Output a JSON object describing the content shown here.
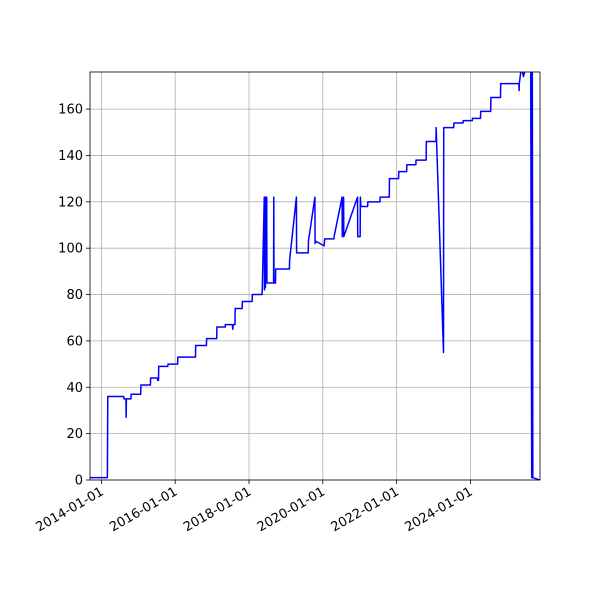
{
  "chart_data": {
    "type": "line",
    "x": [
      "2013-09-10",
      "2014-03-01",
      "2014-03-05",
      "2014-08-10",
      "2014-08-12",
      "2014-09-01",
      "2014-09-03",
      "2014-09-05",
      "2014-10-20",
      "2014-10-22",
      "2015-01-25",
      "2015-01-27",
      "2015-05-01",
      "2015-05-03",
      "2015-07-10",
      "2015-07-12",
      "2015-07-20",
      "2015-07-22",
      "2015-10-20",
      "2015-10-22",
      "2016-01-25",
      "2016-01-27",
      "2016-07-20",
      "2016-07-22",
      "2016-11-05",
      "2016-11-07",
      "2017-02-15",
      "2017-02-17",
      "2017-05-10",
      "2017-05-12",
      "2017-07-20",
      "2017-07-25",
      "2017-07-28",
      "2017-08-15",
      "2017-08-17",
      "2017-10-25",
      "2017-10-27",
      "2018-02-01",
      "2018-02-03",
      "2018-05-10",
      "2018-05-12",
      "2018-06-01",
      "2018-06-03",
      "2018-06-10",
      "2018-06-12",
      "2018-06-25",
      "2018-06-27",
      "2018-09-01",
      "2018-09-03",
      "2018-09-05",
      "2018-09-20",
      "2018-09-22",
      "2019-02-05",
      "2019-02-07",
      "2019-04-15",
      "2019-04-17",
      "2019-08-10",
      "2019-08-12",
      "2019-10-15",
      "2019-10-17",
      "2019-10-25",
      "2020-01-15",
      "2020-01-20",
      "2020-04-20",
      "2020-04-22",
      "2020-07-10",
      "2020-07-12",
      "2020-07-25",
      "2020-07-27",
      "2020-12-10",
      "2020-12-12",
      "2021-01-05",
      "2021-01-07",
      "2021-01-12",
      "2021-03-20",
      "2021-03-22",
      "2021-07-20",
      "2021-07-22",
      "2021-10-20",
      "2021-10-22",
      "2022-01-20",
      "2022-01-22",
      "2022-04-10",
      "2022-04-12",
      "2022-07-10",
      "2022-07-12",
      "2022-10-20",
      "2022-10-22",
      "2023-01-25",
      "2023-01-27",
      "2023-04-10",
      "2023-04-12",
      "2023-07-20",
      "2023-07-22",
      "2023-10-20",
      "2023-10-22",
      "2024-01-20",
      "2024-01-22",
      "2024-04-10",
      "2024-04-12",
      "2024-07-20",
      "2024-07-22",
      "2024-10-25",
      "2024-10-27",
      "2025-04-25",
      "2025-04-27",
      "2025-04-29",
      "2025-05-20",
      "2025-06-10",
      "2025-07-01",
      "2025-08-20",
      "2025-08-30",
      "2025-09-05",
      "2025-09-10",
      "2025-11-20"
    ],
    "series": [
      {
        "name": "value",
        "color": "#0000ff",
        "values": [
          1,
          1,
          36,
          36,
          35,
          35,
          27,
          35,
          35,
          37,
          37,
          41,
          41,
          44,
          44,
          43,
          43,
          49,
          49,
          50,
          50,
          53,
          53,
          58,
          58,
          61,
          61,
          66,
          66,
          67,
          67,
          65,
          67,
          67,
          74,
          74,
          77,
          77,
          80,
          80,
          82,
          122,
          82,
          122,
          83,
          122,
          85,
          85,
          122,
          85,
          85,
          91,
          91,
          95,
          122,
          98,
          98,
          103,
          122,
          102,
          103,
          101,
          104,
          104,
          105,
          122,
          105,
          122,
          105,
          122,
          105,
          105,
          122,
          118,
          118,
          120,
          120,
          122,
          122,
          130,
          130,
          133,
          133,
          136,
          136,
          138,
          138,
          146,
          146,
          152,
          55,
          152,
          152,
          154,
          154,
          155,
          155,
          156,
          156,
          159,
          159,
          165,
          165,
          171,
          171,
          168,
          171,
          178,
          174,
          178,
          178,
          1,
          178,
          1,
          0
        ]
      }
    ],
    "xlim": [
      "2013-09-10",
      "2025-11-20"
    ],
    "xticks": [
      "2014-01-01",
      "2016-01-01",
      "2018-01-01",
      "2020-01-01",
      "2022-01-01",
      "2024-01-01"
    ],
    "ylim": [
      0,
      176
    ],
    "yticks": [
      0,
      20,
      40,
      60,
      80,
      100,
      120,
      140,
      160
    ],
    "grid": true
  }
}
